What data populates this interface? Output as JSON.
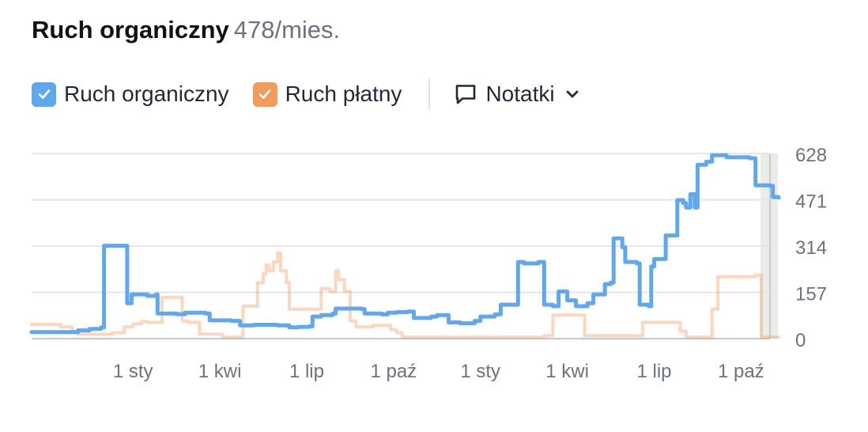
{
  "header": {
    "title": "Ruch organiczny",
    "value": "478/mies."
  },
  "legend": {
    "organic": {
      "label": "Ruch organiczny",
      "color": "#5fa7ee",
      "checked": true
    },
    "paid": {
      "label": "Ruch płatny",
      "color": "#f29c5c",
      "checked": true
    },
    "notes": {
      "label": "Notatki",
      "icon": "comment-icon",
      "chevron_icon": "chevron-down-icon"
    }
  },
  "chart_data": {
    "type": "line",
    "title": "Ruch organiczny",
    "ylim": [
      0,
      628
    ],
    "y_ticks": [
      {
        "value": 628,
        "label": "628"
      },
      {
        "value": 471,
        "label": "471"
      },
      {
        "value": 314,
        "label": "314"
      },
      {
        "value": 157,
        "label": "157"
      },
      {
        "value": 0,
        "label": "0"
      }
    ],
    "x_range": [
      0,
      25.5
    ],
    "x_ticks": [
      {
        "x": 3.5,
        "label": "1 sty"
      },
      {
        "x": 6.5,
        "label": "1 kwi"
      },
      {
        "x": 9.5,
        "label": "1 lip"
      },
      {
        "x": 12.5,
        "label": "1 paź"
      },
      {
        "x": 15.5,
        "label": "1 sty"
      },
      {
        "x": 18.5,
        "label": "1 kwi"
      },
      {
        "x": 21.5,
        "label": "1 lip"
      },
      {
        "x": 24.5,
        "label": "1 paź"
      }
    ],
    "series": [
      {
        "name": "Ruch organiczny",
        "color": "#5fa7ee",
        "points": [
          [
            0,
            22
          ],
          [
            1.4,
            22
          ],
          [
            1.6,
            28
          ],
          [
            2.0,
            33
          ],
          [
            2.4,
            38
          ],
          [
            2.5,
            315
          ],
          [
            3.2,
            315
          ],
          [
            3.3,
            120
          ],
          [
            3.45,
            150
          ],
          [
            4.0,
            145
          ],
          [
            4.3,
            150
          ],
          [
            4.35,
            85
          ],
          [
            5.0,
            83
          ],
          [
            5.3,
            88
          ],
          [
            6.0,
            85
          ],
          [
            6.15,
            62
          ],
          [
            6.9,
            60
          ],
          [
            7.2,
            45
          ],
          [
            7.7,
            47
          ],
          [
            8.1,
            47
          ],
          [
            8.5,
            45
          ],
          [
            8.9,
            38
          ],
          [
            9.2,
            40
          ],
          [
            9.6,
            42
          ],
          [
            9.7,
            75
          ],
          [
            10.0,
            80
          ],
          [
            10.4,
            85
          ],
          [
            10.5,
            102
          ],
          [
            11.4,
            100
          ],
          [
            11.5,
            85
          ],
          [
            12.1,
            82
          ],
          [
            12.3,
            88
          ],
          [
            12.6,
            90
          ],
          [
            13.0,
            92
          ],
          [
            13.2,
            70
          ],
          [
            13.8,
            75
          ],
          [
            14.0,
            80
          ],
          [
            14.4,
            55
          ],
          [
            14.8,
            52
          ],
          [
            15.3,
            60
          ],
          [
            15.5,
            75
          ],
          [
            16.0,
            82
          ],
          [
            16.2,
            115
          ],
          [
            16.7,
            115
          ],
          [
            16.8,
            260
          ],
          [
            17.0,
            255
          ],
          [
            17.5,
            260
          ],
          [
            17.7,
            115
          ],
          [
            18.0,
            110
          ],
          [
            18.2,
            160
          ],
          [
            18.5,
            130
          ],
          [
            18.8,
            110
          ],
          [
            19.2,
            120
          ],
          [
            19.4,
            150
          ],
          [
            19.8,
            185
          ],
          [
            20.0,
            190
          ],
          [
            20.1,
            340
          ],
          [
            20.4,
            310
          ],
          [
            20.5,
            260
          ],
          [
            20.9,
            255
          ],
          [
            21.0,
            115
          ],
          [
            21.3,
            110
          ],
          [
            21.4,
            245
          ],
          [
            21.5,
            270
          ],
          [
            21.8,
            270
          ],
          [
            21.9,
            350
          ],
          [
            22.2,
            350
          ],
          [
            22.3,
            470
          ],
          [
            22.5,
            460
          ],
          [
            22.6,
            445
          ],
          [
            22.75,
            490
          ],
          [
            22.9,
            445
          ],
          [
            23.0,
            590
          ],
          [
            23.3,
            600
          ],
          [
            23.5,
            622
          ],
          [
            24.0,
            615
          ],
          [
            24.8,
            612
          ],
          [
            25.0,
            520
          ],
          [
            25.5,
            518
          ],
          [
            25.6,
            480
          ],
          [
            25.8,
            478
          ]
        ]
      },
      {
        "name": "Ruch płatny",
        "color": "#f29c5c",
        "opacity": 0.4,
        "points": [
          [
            0,
            48
          ],
          [
            0.8,
            48
          ],
          [
            1.0,
            40
          ],
          [
            1.4,
            20
          ],
          [
            1.6,
            15
          ],
          [
            2.6,
            15
          ],
          [
            2.8,
            20
          ],
          [
            3.2,
            40
          ],
          [
            3.5,
            50
          ],
          [
            3.8,
            58
          ],
          [
            4.0,
            55
          ],
          [
            4.5,
            140
          ],
          [
            4.8,
            140
          ],
          [
            5.2,
            60
          ],
          [
            5.4,
            55
          ],
          [
            5.8,
            15
          ],
          [
            6.4,
            15
          ],
          [
            6.6,
            5
          ],
          [
            7.2,
            5
          ],
          [
            7.3,
            110
          ],
          [
            7.6,
            110
          ],
          [
            7.8,
            190
          ],
          [
            8.0,
            220
          ],
          [
            8.1,
            250
          ],
          [
            8.2,
            230
          ],
          [
            8.35,
            260
          ],
          [
            8.5,
            290
          ],
          [
            8.6,
            230
          ],
          [
            8.8,
            190
          ],
          [
            8.9,
            100
          ],
          [
            9.2,
            100
          ],
          [
            9.4,
            100
          ],
          [
            9.8,
            100
          ],
          [
            10.0,
            170
          ],
          [
            10.3,
            160
          ],
          [
            10.5,
            230
          ],
          [
            10.6,
            200
          ],
          [
            10.8,
            160
          ],
          [
            11.0,
            60
          ],
          [
            11.2,
            40
          ],
          [
            11.6,
            40
          ],
          [
            11.8,
            45
          ],
          [
            12.2,
            45
          ],
          [
            12.4,
            30
          ],
          [
            12.6,
            20
          ],
          [
            12.8,
            5
          ],
          [
            13.5,
            5
          ],
          [
            14.0,
            5
          ],
          [
            15.5,
            5
          ],
          [
            17.5,
            5
          ],
          [
            17.7,
            10
          ],
          [
            18.0,
            80
          ],
          [
            19.0,
            80
          ],
          [
            19.1,
            10
          ],
          [
            21.0,
            10
          ],
          [
            21.1,
            55
          ],
          [
            21.5,
            55
          ],
          [
            22.2,
            55
          ],
          [
            22.4,
            25
          ],
          [
            22.6,
            5
          ],
          [
            23.4,
            5
          ],
          [
            23.5,
            100
          ],
          [
            23.7,
            210
          ],
          [
            25.0,
            215
          ],
          [
            25.2,
            5
          ],
          [
            25.8,
            5
          ]
        ]
      }
    ]
  }
}
